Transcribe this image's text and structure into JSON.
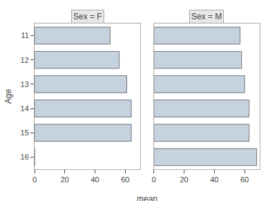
{
  "chart_data": [
    {
      "type": "bar",
      "orientation": "horizontal",
      "title": "Sex = F",
      "categories": [
        "11",
        "12",
        "13",
        "14",
        "15",
        "16"
      ],
      "values": [
        50,
        56,
        61,
        64,
        64,
        0
      ],
      "color": "#c5d3e0",
      "xlim": [
        0,
        70
      ],
      "xticks": [
        0,
        20,
        40,
        60
      ],
      "xlabel": "mean",
      "ylabel": "Age",
      "grid": false
    },
    {
      "type": "bar",
      "orientation": "horizontal",
      "title": "Sex = M",
      "categories": [
        "11",
        "12",
        "13",
        "14",
        "15",
        "16"
      ],
      "values": [
        57,
        58,
        60,
        63,
        63,
        68
      ],
      "color": "#c5d3e0",
      "xlim": [
        0,
        70
      ],
      "xticks": [
        0,
        20,
        40,
        60
      ],
      "grid": false,
      "tick_labels": "x"
    }
  ]
}
